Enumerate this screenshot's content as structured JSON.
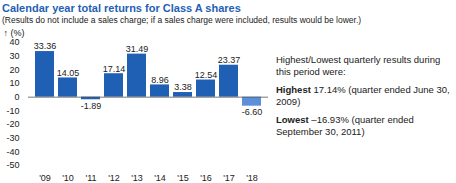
{
  "chart_data": {
    "type": "bar",
    "title": "Calendar year total returns for Class A shares",
    "subtitle": "(Results do not include a sales charge; if a sales charge were included, results would be lower.)",
    "y_label": "(%)",
    "categories": [
      "'09",
      "'10",
      "'11",
      "'12",
      "'13",
      "'14",
      "'15",
      "'16",
      "'17",
      "'18"
    ],
    "values": [
      33.36,
      14.05,
      -1.89,
      17.14,
      31.49,
      8.96,
      3.38,
      12.54,
      23.37,
      -6.6
    ],
    "value_labels": [
      "33.36",
      "14.05",
      "-1.89",
      "17.14",
      "31.49",
      "8.96",
      "3.38",
      "12.54",
      "23.37",
      "-6.60"
    ],
    "colors": [
      "#1f5fb4",
      "#1f5fb4",
      "#1f5fb4",
      "#1f5fb4",
      "#1f5fb4",
      "#1f5fb4",
      "#1f5fb4",
      "#1f5fb4",
      "#1f5fb4",
      "#5b8fd9"
    ],
    "ylim": [
      -50,
      40
    ],
    "yticks": [
      -50,
      -40,
      -30,
      -20,
      -10,
      0,
      10,
      20,
      30,
      40
    ],
    "grid": false,
    "data_labels": true,
    "annotation_title": "Highest/Lowest quarterly results during this period were:",
    "annotations": [
      {
        "label": "Highest",
        "text": "17.14% (quarter ended June 30, 2009)"
      },
      {
        "label": "Lowest",
        "text": "–16.93% (quarter ended September 30, 2011)"
      }
    ]
  }
}
